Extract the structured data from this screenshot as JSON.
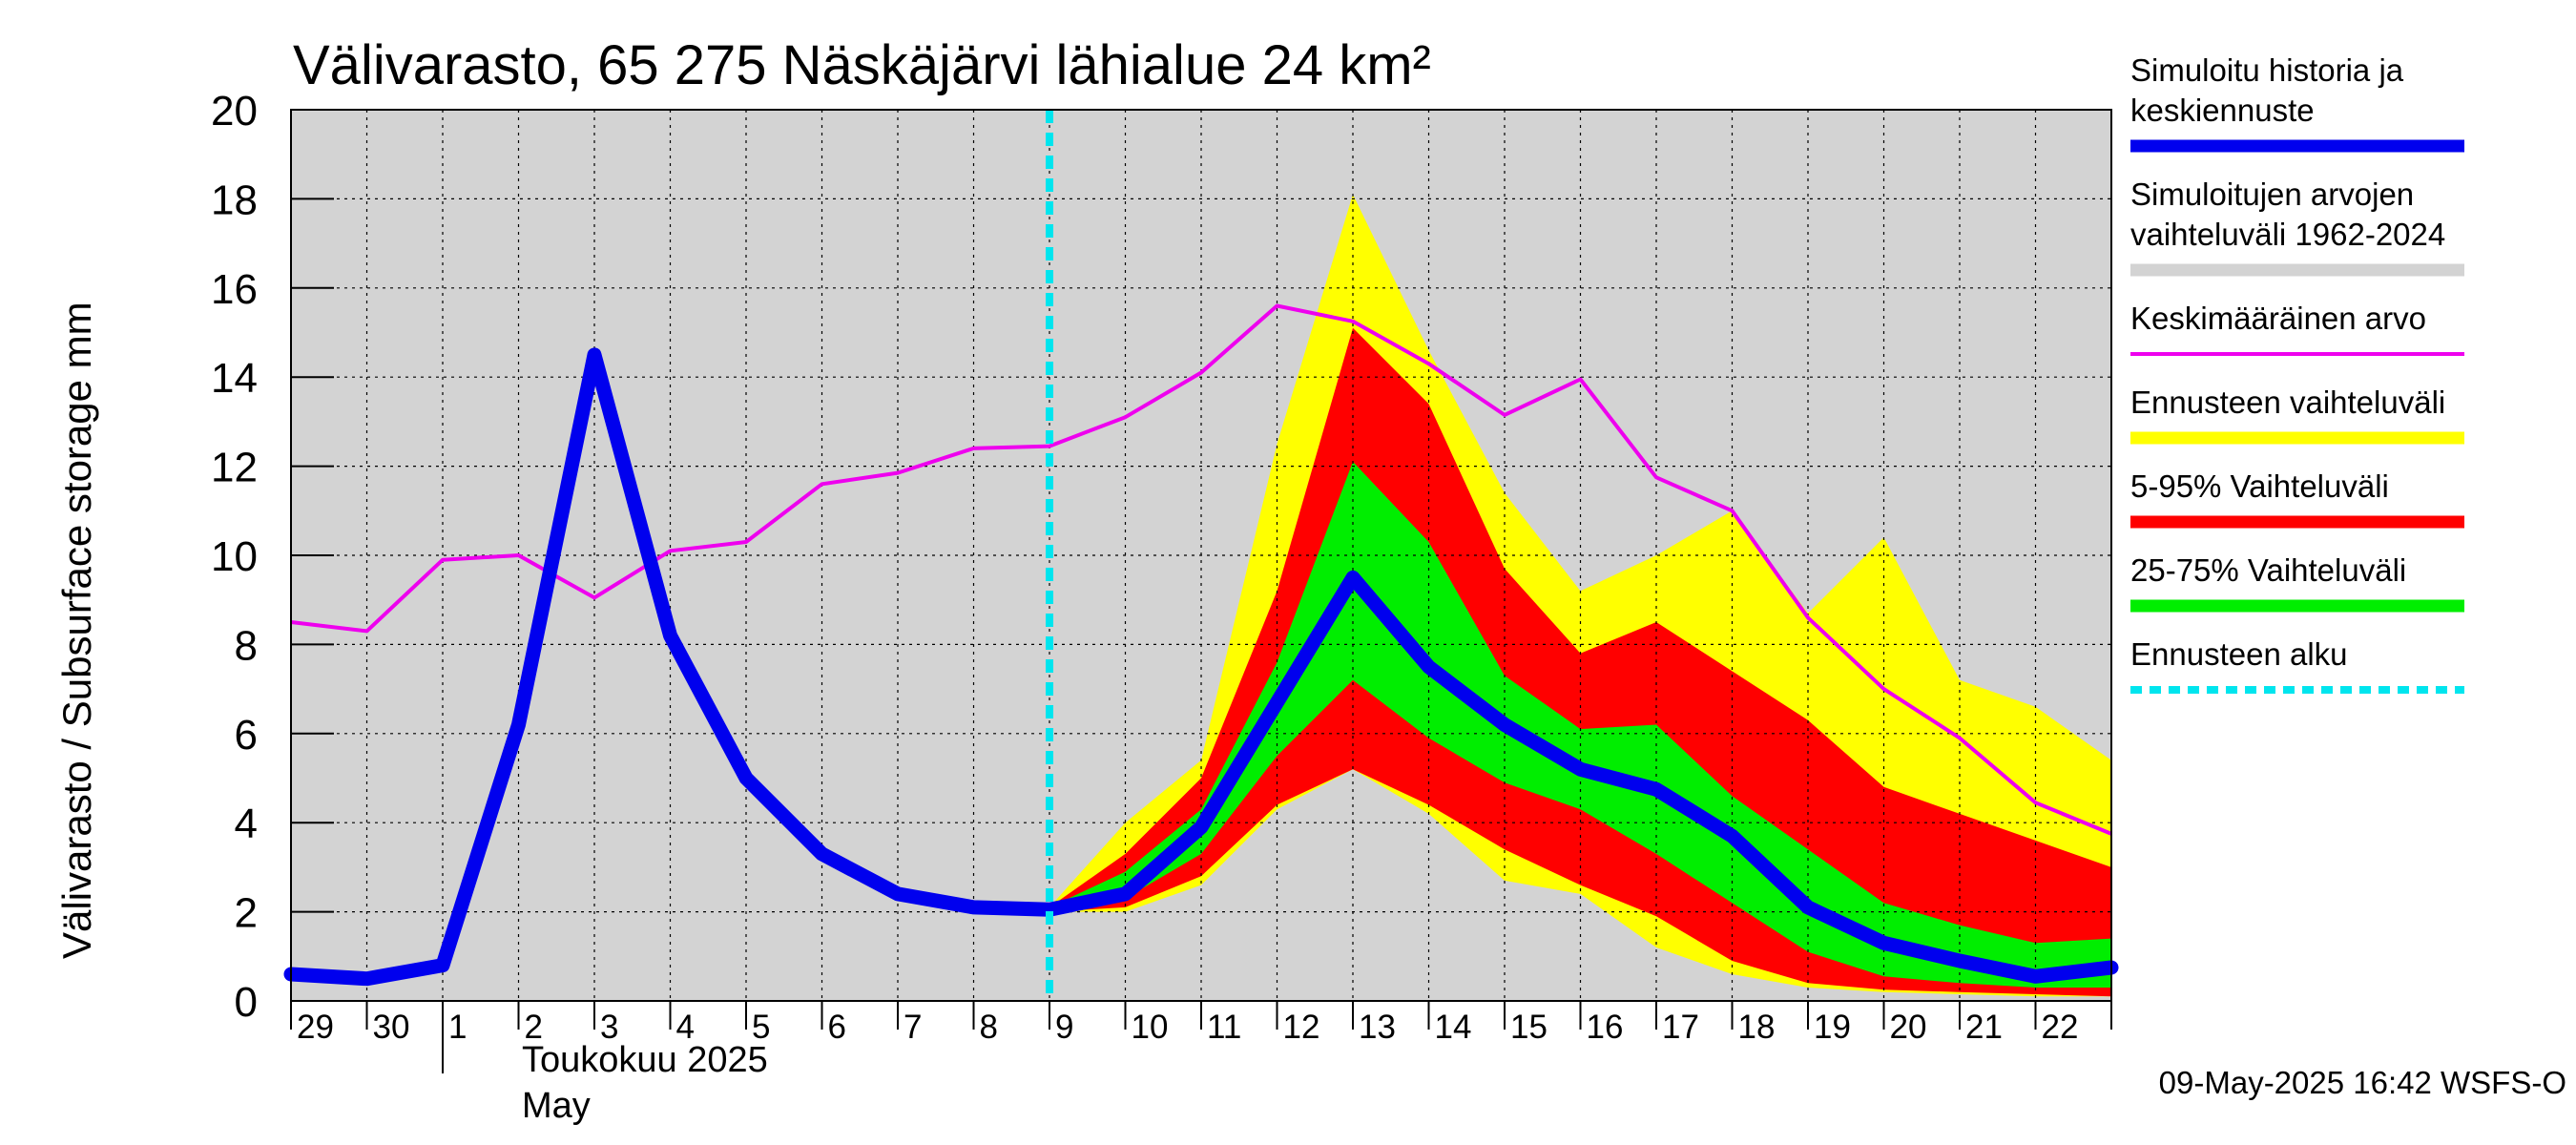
{
  "chart_data": {
    "type": "area",
    "title": "Välivarasto, 65 275 Näskäjärvi lähialue 24 km²",
    "ylabel": "Välivarasto / Subsurface storage  mm",
    "ylim": [
      0,
      20
    ],
    "yticks": [
      "0",
      "2",
      "4",
      "6",
      "8",
      "10",
      "12",
      "14",
      "16",
      "18",
      "20"
    ],
    "grid": true,
    "legend_placement": "right",
    "x_start_date": "2025-04-29",
    "x_end_date": "2025-05-23",
    "x_tick_labels": [
      "29",
      "30",
      "1",
      "2",
      "3",
      "4",
      "5",
      "6",
      "7",
      "8",
      "9",
      "10",
      "11",
      "12",
      "13",
      "14",
      "15",
      "16",
      "17",
      "18",
      "19",
      "20",
      "21",
      "22"
    ],
    "month_label_fi": "Toukokuu  2025",
    "month_label_en": "May",
    "forecast_start_date": "2025-05-09",
    "footer": "09-May-2025 16:42 WSFS-O",
    "colors": {
      "history_range": "#d3d3d3",
      "simulated": "#0000ee",
      "mean": "#ee00ee",
      "forecast_range": "#ffff00",
      "p5_95": "#ff0000",
      "p25_75": "#00ee00",
      "forecast_start": "#00e5ee"
    },
    "legend": [
      {
        "key": "simulated",
        "lines": [
          "Simuloitu historia ja",
          "keskiennuste"
        ]
      },
      {
        "key": "history_range",
        "lines": [
          "Simuloitujen arvojen",
          "vaihteluväli 1962-2024"
        ]
      },
      {
        "key": "mean",
        "lines": [
          "Keskimääräinen arvo"
        ]
      },
      {
        "key": "forecast_range",
        "lines": [
          "Ennusteen vaihteluväli"
        ]
      },
      {
        "key": "p5_95",
        "lines": [
          "5-95% Vaihteluväli"
        ]
      },
      {
        "key": "p25_75",
        "lines": [
          "25-75% Vaihteluväli"
        ]
      },
      {
        "key": "forecast_start",
        "lines": [
          "Ennusteen alku"
        ]
      }
    ],
    "series": {
      "simulated": {
        "x": [
          "2025-04-29",
          "2025-04-30",
          "2025-05-01",
          "2025-05-02",
          "2025-05-03",
          "2025-05-04",
          "2025-05-05",
          "2025-05-06",
          "2025-05-07",
          "2025-05-08",
          "2025-05-09",
          "2025-05-10",
          "2025-05-11",
          "2025-05-12",
          "2025-05-13",
          "2025-05-14",
          "2025-05-15",
          "2025-05-16",
          "2025-05-17",
          "2025-05-18",
          "2025-05-19",
          "2025-05-20",
          "2025-05-21",
          "2025-05-22",
          "2025-05-23"
        ],
        "y": [
          0.6,
          0.5,
          0.8,
          6.2,
          14.5,
          8.2,
          5.0,
          3.3,
          2.4,
          2.1,
          2.05,
          2.4,
          3.9,
          6.7,
          9.5,
          7.5,
          6.2,
          5.2,
          4.75,
          3.7,
          2.1,
          1.3,
          0.9,
          0.55,
          0.75
        ]
      },
      "mean": {
        "x": [
          "2025-04-29",
          "2025-04-30",
          "2025-05-01",
          "2025-05-02",
          "2025-05-03",
          "2025-05-04",
          "2025-05-05",
          "2025-05-06",
          "2025-05-07",
          "2025-05-08",
          "2025-05-09",
          "2025-05-10",
          "2025-05-11",
          "2025-05-12",
          "2025-05-13",
          "2025-05-14",
          "2025-05-15",
          "2025-05-16",
          "2025-05-17",
          "2025-05-18",
          "2025-05-19",
          "2025-05-20",
          "2025-05-21",
          "2025-05-22",
          "2025-05-23"
        ],
        "y": [
          8.5,
          8.3,
          9.9,
          10.0,
          9.05,
          10.1,
          10.3,
          11.6,
          11.85,
          12.4,
          12.45,
          13.1,
          14.1,
          15.6,
          15.25,
          14.3,
          13.15,
          13.95,
          11.75,
          11.0,
          8.6,
          7.0,
          5.9,
          4.45,
          3.75
        ]
      },
      "forecast_range": {
        "x": [
          "2025-05-09",
          "2025-05-10",
          "2025-05-11",
          "2025-05-12",
          "2025-05-13",
          "2025-05-14",
          "2025-05-15",
          "2025-05-16",
          "2025-05-17",
          "2025-05-18",
          "2025-05-19",
          "2025-05-20",
          "2025-05-21",
          "2025-05-22",
          "2025-05-23"
        ],
        "upper": [
          2.1,
          4.0,
          5.4,
          12.5,
          18.1,
          14.6,
          11.4,
          9.2,
          10.0,
          11.0,
          8.7,
          10.4,
          7.2,
          6.6,
          5.4
        ],
        "lower": [
          2.0,
          2.0,
          2.6,
          4.3,
          5.2,
          4.2,
          2.7,
          2.4,
          1.2,
          0.6,
          0.3,
          0.2,
          0.15,
          0.1,
          0.1
        ]
      },
      "p5_95": {
        "x": [
          "2025-05-09",
          "2025-05-10",
          "2025-05-11",
          "2025-05-12",
          "2025-05-13",
          "2025-05-14",
          "2025-05-15",
          "2025-05-16",
          "2025-05-17",
          "2025-05-18",
          "2025-05-19",
          "2025-05-20",
          "2025-05-21",
          "2025-05-22",
          "2025-05-23"
        ],
        "upper": [
          2.1,
          3.3,
          5.0,
          9.2,
          15.1,
          13.4,
          9.7,
          7.8,
          8.5,
          7.4,
          6.3,
          4.8,
          4.2,
          3.6,
          3.0
        ],
        "lower": [
          2.0,
          2.1,
          2.8,
          4.4,
          5.2,
          4.4,
          3.4,
          2.6,
          1.9,
          0.9,
          0.4,
          0.25,
          0.2,
          0.15,
          0.1
        ]
      },
      "p25_75": {
        "x": [
          "2025-05-09",
          "2025-05-10",
          "2025-05-11",
          "2025-05-12",
          "2025-05-13",
          "2025-05-14",
          "2025-05-15",
          "2025-05-16",
          "2025-05-17",
          "2025-05-18",
          "2025-05-19",
          "2025-05-20",
          "2025-05-21",
          "2025-05-22",
          "2025-05-23"
        ],
        "upper": [
          2.1,
          2.9,
          4.3,
          7.6,
          12.1,
          10.3,
          7.3,
          6.1,
          6.2,
          4.6,
          3.4,
          2.2,
          1.7,
          1.3,
          1.4
        ],
        "lower": [
          2.05,
          2.3,
          3.3,
          5.5,
          7.2,
          5.9,
          4.9,
          4.3,
          3.3,
          2.2,
          1.1,
          0.55,
          0.4,
          0.3,
          0.3
        ]
      }
    }
  }
}
